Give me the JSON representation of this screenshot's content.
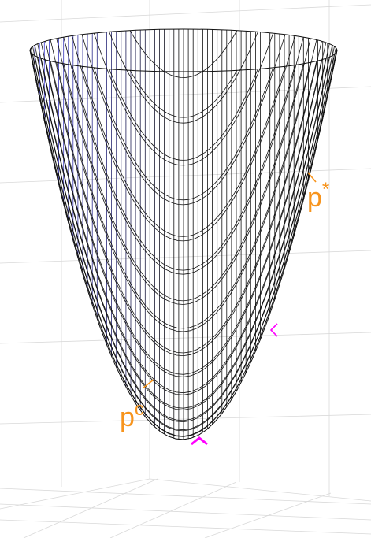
{
  "figure": {
    "colors": {
      "background": "#ffffff",
      "grid": "#d9d9d9",
      "mesh_dark": "#111111",
      "mesh_blue": "#4040e0",
      "annotation_orange": "#f7941d",
      "marker_magenta": "#ff00ff"
    },
    "annotations": {
      "p_star": {
        "base": "p",
        "sup": "*"
      },
      "p_c": {
        "base": "p",
        "sup": "c"
      }
    },
    "markers": [
      {
        "id": "optimum",
        "shape": "chevron-up"
      },
      {
        "id": "right-edge",
        "shape": "chevron-left"
      }
    ]
  }
}
